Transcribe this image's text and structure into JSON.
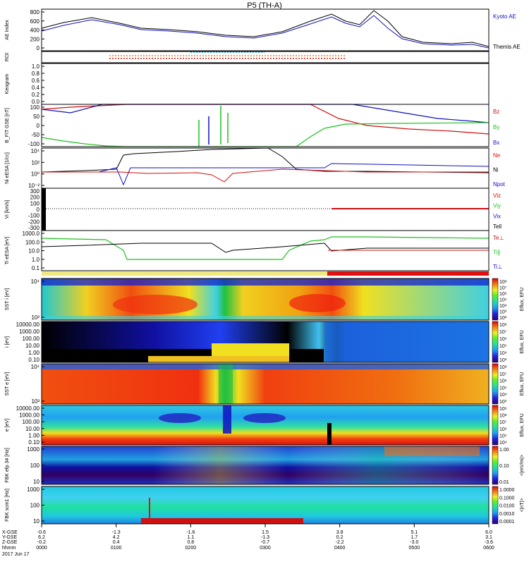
{
  "title": "P5 (TH-A)",
  "colors": {
    "blue": "#1010c0",
    "red": "#d01010",
    "green": "#20c020",
    "black": "#000000",
    "cyan": "#40c0f0",
    "yellow": "#f0e020"
  },
  "panels": [
    {
      "id": "ae",
      "ylabel": "AE Index",
      "ticks": [
        "800",
        "600",
        "400",
        "200",
        "0"
      ],
      "legend": [
        {
          "text": "Kyoto AE",
          "color": "#1010c0"
        },
        {
          "text": "Themis AE",
          "color": "#000000"
        }
      ]
    },
    {
      "id": "roi",
      "ylabel": "ROI",
      "ticks": [],
      "legend": []
    },
    {
      "id": "keogram",
      "ylabel": "Keogram",
      "ticks": [
        "1.0",
        "0.8",
        "0.6",
        "0.4",
        "0.2",
        "0.0"
      ],
      "legend": []
    },
    {
      "id": "bfit",
      "ylabel": "B_FIT GSE [nT]",
      "ticks": [
        "100",
        "50",
        "0",
        "-50",
        "-100"
      ],
      "legend": [
        {
          "text": "Bz",
          "color": "#d01010"
        },
        {
          "text": "By",
          "color": "#20c020"
        },
        {
          "text": "Bx",
          "color": "#1010c0"
        }
      ]
    },
    {
      "id": "ni",
      "ylabel": "Ni eESA [1/cc]",
      "ticks": [
        "10⁴",
        "10²",
        "10⁰",
        "10⁻²"
      ],
      "legend": [
        {
          "text": "Ne",
          "color": "#d01010"
        },
        {
          "text": "Ni",
          "color": "#000000"
        },
        {
          "text": "Npot",
          "color": "#1010c0"
        }
      ]
    },
    {
      "id": "vi",
      "ylabel": "Vi [km/s]",
      "ticks": [
        "300",
        "200",
        "100",
        "0",
        "-100",
        "-200",
        "-300"
      ],
      "legend": [
        {
          "text": "Viz",
          "color": "#d01010"
        },
        {
          "text": "Viy",
          "color": "#20c020"
        },
        {
          "text": "Vix",
          "color": "#1010c0"
        },
        {
          "text": "Tell",
          "color": "#000000"
        }
      ]
    },
    {
      "id": "ti",
      "ylabel": "Ti eESA [eV]",
      "ticks": [
        "1000.0",
        "100.0",
        "10.0",
        "1.0",
        "0.1"
      ],
      "legend": [
        {
          "text": "Te⊥",
          "color": "#d01010"
        },
        {
          "text": "Ti∥",
          "color": "#20c020"
        },
        {
          "text": "Ti⊥",
          "color": "#1010c0"
        }
      ]
    },
    {
      "id": "sst_i",
      "ylabel": "SST i [eV]",
      "ticks": [
        "10⁴",
        "10²"
      ],
      "legend": []
    },
    {
      "id": "esa_i",
      "ylabel": "i [eV]",
      "ticks": [
        "10000.00",
        "1000.00",
        "100.00",
        "10.00",
        "1.00",
        "0.10"
      ],
      "legend": []
    },
    {
      "id": "sst_e",
      "ylabel": "SST e [eV]",
      "ticks": [
        "10⁴",
        "10³"
      ],
      "legend": []
    },
    {
      "id": "esa_e",
      "ylabel": "e [eV]",
      "ticks": [
        "10000.00",
        "1000.00",
        "100.00",
        "10.00",
        "1.00",
        "0.10"
      ],
      "legend": []
    },
    {
      "id": "fbk_e",
      "ylabel": "FBK efp 34 [Hz]",
      "ticks": [
        "1000",
        "100",
        "10"
      ],
      "legend": []
    },
    {
      "id": "fbk_b",
      "ylabel": "FBK scm1 [Hz]",
      "ticks": [
        "1000",
        "100",
        "10"
      ],
      "legend": []
    }
  ],
  "colorbars": [
    {
      "id": "cb-sst-i",
      "label": "Eflux, EFU",
      "ticks": [
        "10⁸",
        "10⁷",
        "10⁶",
        "10⁵",
        "10⁴",
        "10³",
        "10²"
      ]
    },
    {
      "id": "cb-esa-i",
      "label": "Eflux, EFU",
      "ticks": [
        "10⁸",
        "10⁷",
        "10⁶",
        "10⁵",
        "10⁴",
        "10³"
      ]
    },
    {
      "id": "cb-sst-e",
      "label": "Eflux, EFU",
      "ticks": [
        "10⁸",
        "10⁷",
        "10⁶",
        "10⁵",
        "10⁴",
        "10³"
      ]
    },
    {
      "id": "cb-esa-e",
      "label": "Eflux, EFU",
      "ticks": [
        "10⁹",
        "10⁸",
        "10⁷",
        "10⁶",
        "10⁵",
        "10⁴"
      ]
    },
    {
      "id": "cb-fbk-e",
      "label": "<|mV/m|>",
      "ticks": [
        "1.00",
        "0.10",
        "0.01"
      ]
    },
    {
      "id": "cb-fbk-b",
      "label": "<|nT|>",
      "ticks": [
        "1.0000",
        "0.1000",
        "0.0100",
        "0.0010",
        "0.0001"
      ]
    }
  ],
  "xaxis": {
    "row_labels": [
      "X-GSE",
      "Y-GSE",
      "Z-GSE",
      "hhmm",
      "2017 Jun 17"
    ],
    "columns": [
      {
        "x": "-0.6",
        "y": "6.2",
        "z": "-0.2",
        "t": "0000"
      },
      {
        "x": "-1.3",
        "y": "4.2",
        "z": "0.4",
        "t": "0100"
      },
      {
        "x": "-1.6",
        "y": "1.1",
        "z": "0.8",
        "t": "0200"
      },
      {
        "x": "1.5",
        "y": "-1.3",
        "z": "-0.7",
        "t": "0300"
      },
      {
        "x": "3.8",
        "y": "0.2",
        "z": "-2.2",
        "t": "0400"
      },
      {
        "x": "5.1",
        "y": "1.7",
        "z": "-3.0",
        "t": "0500"
      },
      {
        "x": "6.0",
        "y": "3.1",
        "z": "-3.6",
        "t": "0600"
      }
    ]
  }
}
